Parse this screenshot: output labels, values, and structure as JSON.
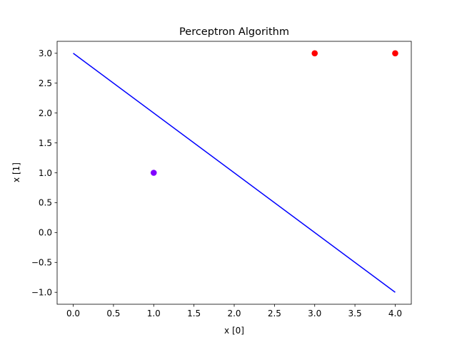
{
  "chart_data": {
    "type": "scatter",
    "title": "Perceptron Algorithm",
    "xlabel": "x [0]",
    "ylabel": "x [1]",
    "xlim": [
      -0.2,
      4.2
    ],
    "ylim": [
      -1.2,
      3.2
    ],
    "grid": false,
    "x_ticks": [
      0.0,
      0.5,
      1.0,
      1.5,
      2.0,
      2.5,
      3.0,
      3.5,
      4.0
    ],
    "x_tick_labels": [
      "0.0",
      "0.5",
      "1.0",
      "1.5",
      "2.0",
      "2.5",
      "3.0",
      "3.5",
      "4.0"
    ],
    "y_ticks": [
      -1.0,
      -0.5,
      0.0,
      0.5,
      1.0,
      1.5,
      2.0,
      2.5,
      3.0
    ],
    "y_tick_labels": [
      "−1.0",
      "−0.5",
      "0.0",
      "0.5",
      "1.0",
      "1.5",
      "2.0",
      "2.5",
      "3.0"
    ],
    "points": [
      {
        "x": 1,
        "y": 1,
        "color": "#8000ff"
      },
      {
        "x": 3,
        "y": 3,
        "color": "#ff0000"
      },
      {
        "x": 4,
        "y": 3,
        "color": "#ff0000"
      }
    ],
    "line": {
      "x": [
        0,
        4
      ],
      "y": [
        3,
        -1
      ],
      "color": "#0000ff"
    }
  }
}
